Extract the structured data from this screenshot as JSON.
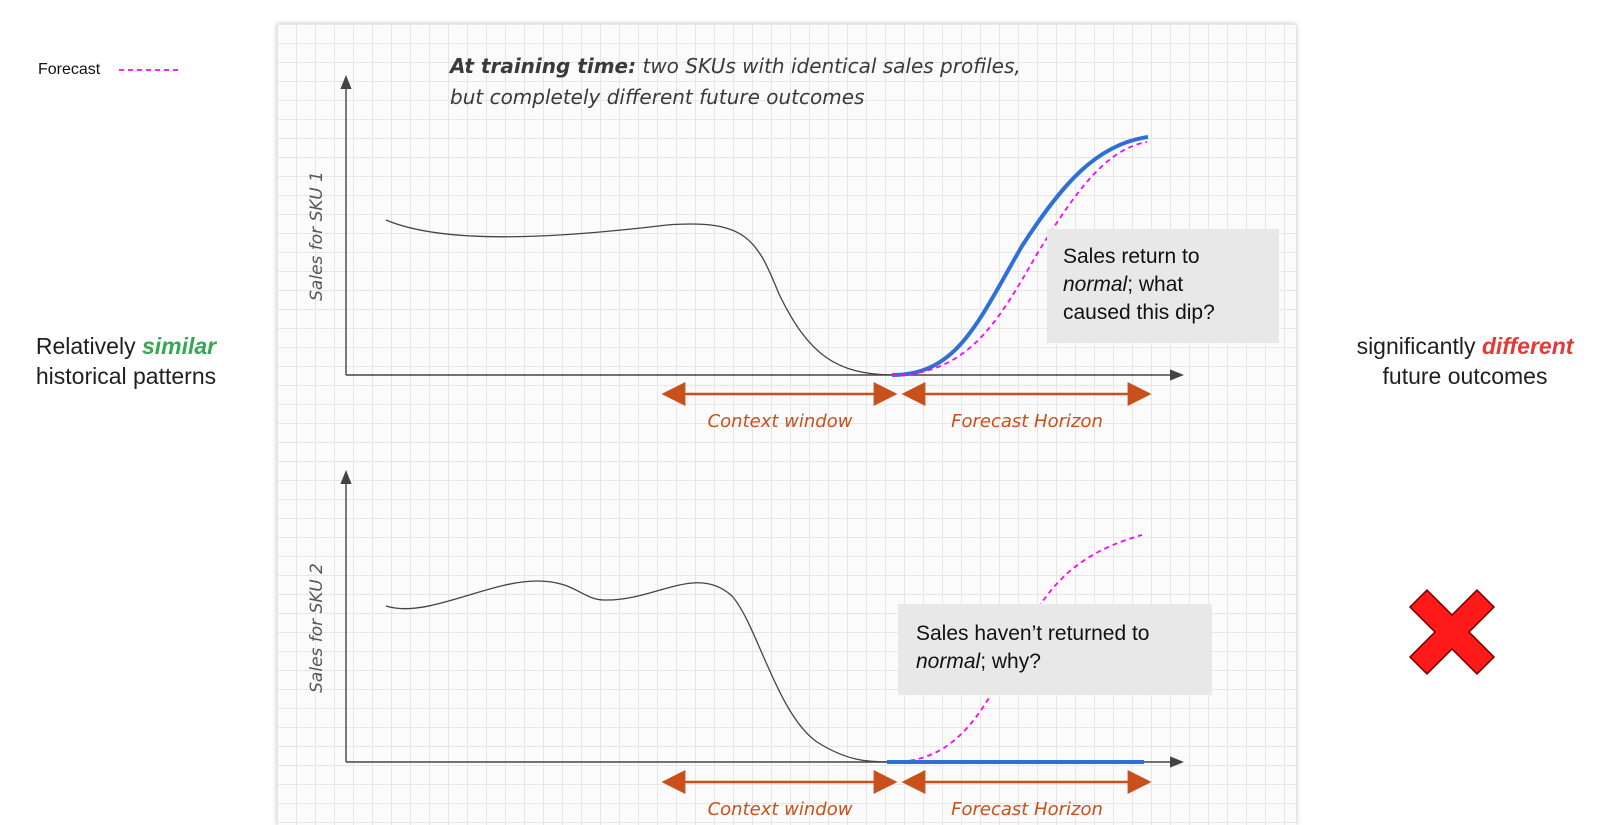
{
  "legend": {
    "label": "Forecast",
    "line_color": "#ff00ff"
  },
  "left_caption": {
    "before": "Relatively ",
    "emphasis": "similar",
    "after": "historical patterns",
    "emphasis_color": "#34a853"
  },
  "right_caption": {
    "before": "significantly ",
    "emphasis": "different",
    "after": "future outcomes",
    "emphasis_color": "#e53935"
  },
  "diagram": {
    "heading_bold": "At training time:",
    "heading_line1_rest": " two SKUs with identical sales profiles,",
    "heading_line2": "but completely different future outcomes",
    "top_chart": {
      "y_label": "Sales for SKU 1",
      "context_label": "Context window",
      "horizon_label": "Forecast Horizon",
      "callout_line1": "Sales return to",
      "callout_line2_italic": "normal",
      "callout_line2_rest": "; what",
      "callout_line3": "caused this dip?"
    },
    "bottom_chart": {
      "y_label": "Sales for SKU 2",
      "context_label": "Context window",
      "horizon_label": "Forecast Horizon",
      "callout_line1": "Sales haven’t returned to",
      "callout_line2_italic": "normal",
      "callout_line2_rest": "; why?"
    }
  },
  "colors": {
    "history_line": "#444444",
    "actual_line": "#2f6fd6",
    "forecast_line": "#ff00ff",
    "window_arrows": "#c8501a",
    "axis": "#444444",
    "cross": "#ff1a1a"
  },
  "status_icon": "cross-mark-icon"
}
